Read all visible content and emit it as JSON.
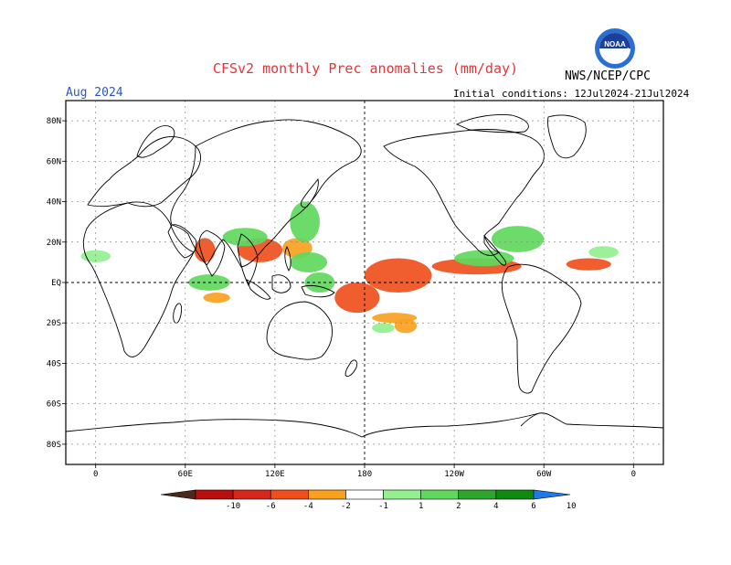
{
  "header": {
    "title": "CFSv2 monthly Prec anomalies (mm/day)",
    "agency": "NWS/NCEP/CPC",
    "month": "Aug 2024",
    "initial_conditions": "Initial conditions: 12Jul2024-21Jul2024"
  },
  "logo": {
    "text": "NOAA",
    "icon": "noaa-logo-icon",
    "ring_color": "#2a6fd1"
  },
  "map": {
    "lat_labels": [
      "80N",
      "60N",
      "40N",
      "20N",
      "EQ",
      "20S",
      "40S",
      "60S",
      "80S"
    ],
    "lat_values": [
      80,
      60,
      40,
      20,
      0,
      -20,
      -40,
      -60,
      -80
    ],
    "lon_labels": [
      "0",
      "60E",
      "120E",
      "180",
      "120W",
      "60W",
      "0"
    ],
    "lon_values": [
      0,
      60,
      120,
      180,
      240,
      300,
      360
    ],
    "lon_range": [
      -20,
      380
    ],
    "lat_range": [
      -90,
      90
    ]
  },
  "colorbar": {
    "labels": [
      "-10",
      "-6",
      "-4",
      "-2",
      "-1",
      "1",
      "2",
      "4",
      "6",
      "10"
    ],
    "colors": [
      "#4a2a1a",
      "#b80f0f",
      "#d7261e",
      "#ef4f1d",
      "#f8a121",
      "#ffffff",
      "#93ef8f",
      "#5fd85d",
      "#2ea52d",
      "#108a10",
      "#1f79e8"
    ]
  },
  "chart_data": {
    "type": "heatmap",
    "title": "CFSv2 monthly Prec anomalies (mm/day)",
    "x": "longitude",
    "y": "latitude",
    "xlim": [
      -20,
      380
    ],
    "ylim": [
      -90,
      90
    ],
    "levels": [
      -10,
      -6,
      -4,
      -2,
      -1,
      1,
      2,
      4,
      6,
      10
    ],
    "anomaly_regions": [
      {
        "lon": [
          180,
          225
        ],
        "lat": [
          -5,
          12
        ],
        "value": -4
      },
      {
        "lon": [
          225,
          285
        ],
        "lat": [
          4,
          12
        ],
        "value": -3
      },
      {
        "lon": [
          160,
          190
        ],
        "lat": [
          -15,
          0
        ],
        "value": -4
      },
      {
        "lon": [
          185,
          215
        ],
        "lat": [
          -20,
          -15
        ],
        "value": -2
      },
      {
        "lon": [
          315,
          345
        ],
        "lat": [
          6,
          12
        ],
        "value": -3
      },
      {
        "lon": [
          66,
          80
        ],
        "lat": [
          10,
          22
        ],
        "value": -3
      },
      {
        "lon": [
          95,
          125
        ],
        "lat": [
          10,
          22
        ],
        "value": -3
      },
      {
        "lon": [
          125,
          145
        ],
        "lat": [
          12,
          22
        ],
        "value": -2
      },
      {
        "lon": [
          200,
          215
        ],
        "lat": [
          -25,
          -18
        ],
        "value": -2
      },
      {
        "lon": [
          72,
          90
        ],
        "lat": [
          -10,
          -5
        ],
        "value": -2
      },
      {
        "lon": [
          130,
          155
        ],
        "lat": [
          5,
          15
        ],
        "value": 2
      },
      {
        "lon": [
          130,
          150
        ],
        "lat": [
          20,
          40
        ],
        "value": 2
      },
      {
        "lon": [
          85,
          115
        ],
        "lat": [
          18,
          27
        ],
        "value": 3
      },
      {
        "lon": [
          62,
          90
        ],
        "lat": [
          -4,
          4
        ],
        "value": 3
      },
      {
        "lon": [
          240,
          280
        ],
        "lat": [
          8,
          16
        ],
        "value": 3
      },
      {
        "lon": [
          265,
          300
        ],
        "lat": [
          15,
          28
        ],
        "value": 2
      },
      {
        "lon": [
          140,
          160
        ],
        "lat": [
          -5,
          5
        ],
        "value": 2
      },
      {
        "lon": [
          185,
          200
        ],
        "lat": [
          -25,
          -20
        ],
        "value": 1
      },
      {
        "lon": [
          -10,
          10
        ],
        "lat": [
          10,
          16
        ],
        "value": 1
      },
      {
        "lon": [
          330,
          350
        ],
        "lat": [
          12,
          18
        ],
        "value": 1
      }
    ]
  }
}
